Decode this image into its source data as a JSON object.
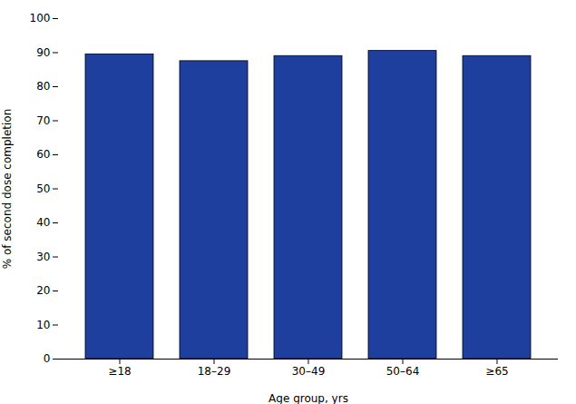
{
  "chart_data": {
    "type": "bar",
    "categories": [
      "≥18",
      "18–29",
      "30–49",
      "50–64",
      "≥65"
    ],
    "values": [
      89.5,
      87.5,
      89.0,
      90.5,
      89.0
    ],
    "color": "#1F3F9F",
    "xlabel": "Age group, yrs",
    "ylabel": "% of second dose completion",
    "ylim": [
      0,
      100
    ],
    "yticks": [
      0,
      10,
      20,
      30,
      40,
      50,
      60,
      70,
      80,
      90,
      100
    ],
    "grid": false
  }
}
